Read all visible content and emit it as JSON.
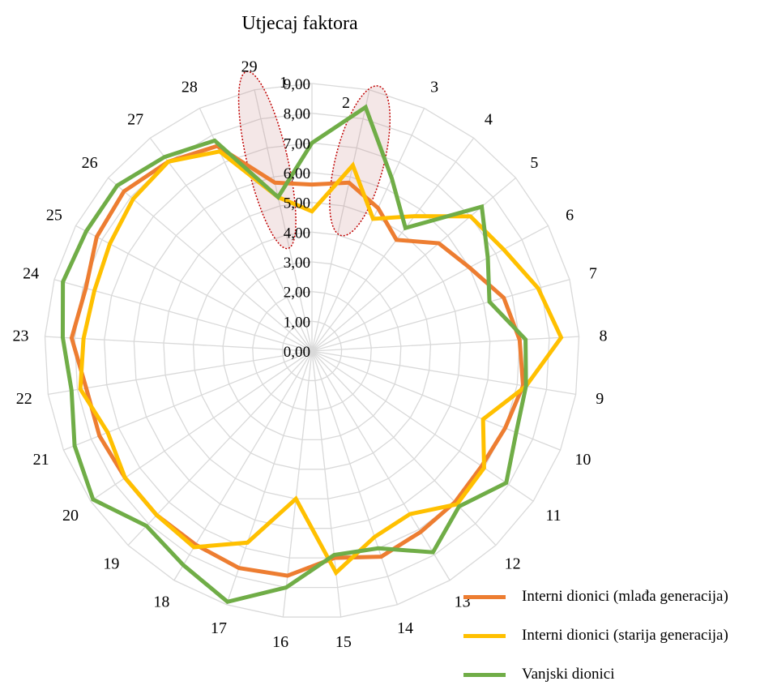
{
  "chart_data": {
    "type": "radar",
    "title": "Utjecaj faktora",
    "rlim": [
      0,
      9
    ],
    "radial_ticks": [
      "0,00",
      "1,00",
      "2,00",
      "3,00",
      "4,00",
      "5,00",
      "6,00",
      "7,00",
      "8,00",
      "9,00"
    ],
    "categories": [
      "1",
      "2",
      "3",
      "4",
      "5",
      "6",
      "7",
      "8",
      "9",
      "10",
      "11",
      "12",
      "13",
      "14",
      "15",
      "16",
      "17",
      "18",
      "19",
      "20",
      "21",
      "22",
      "23",
      "24",
      "25",
      "26",
      "27",
      "28",
      "29"
    ],
    "grid": true,
    "legend_position": "bottom-right",
    "highlighted_categories": [
      "1",
      "2"
    ],
    "series": [
      {
        "name": "Interni dionici (mlađa generacija)",
        "color": "#ED7D31",
        "values": [
          5.6,
          5.8,
          5.3,
          4.7,
          5.6,
          6.0,
          6.7,
          7.0,
          7.2,
          7.0,
          6.9,
          7.0,
          7.1,
          7.3,
          7.0,
          7.6,
          7.7,
          7.6,
          7.6,
          7.6,
          7.7,
          7.7,
          8.1,
          7.9,
          8.2,
          8.3,
          8.0,
          7.6,
          5.8
        ]
      },
      {
        "name": "Interni dionici (starija generacija)",
        "color": "#FFC000",
        "values": [
          4.7,
          6.4,
          4.9,
          5.7,
          7.0,
          7.3,
          7.9,
          8.4,
          7.3,
          6.2,
          7.0,
          7.1,
          6.4,
          6.6,
          7.5,
          5.0,
          6.8,
          7.7,
          7.6,
          7.6,
          7.4,
          7.9,
          7.7,
          7.6,
          7.7,
          7.9,
          8.0,
          7.4,
          5.3
        ]
      },
      {
        "name": "Vanjski dionici",
        "color": "#70AD47",
        "values": [
          7.0,
          8.4,
          6.4,
          5.2,
          7.5,
          6.7,
          6.2,
          7.2,
          7.3,
          7.4,
          7.9,
          7.2,
          7.9,
          7.0,
          6.9,
          8.0,
          8.9,
          8.4,
          8.1,
          8.9,
          8.6,
          8.2,
          8.4,
          8.7,
          8.6,
          8.6,
          8.2,
          7.8,
          5.3
        ]
      }
    ]
  }
}
